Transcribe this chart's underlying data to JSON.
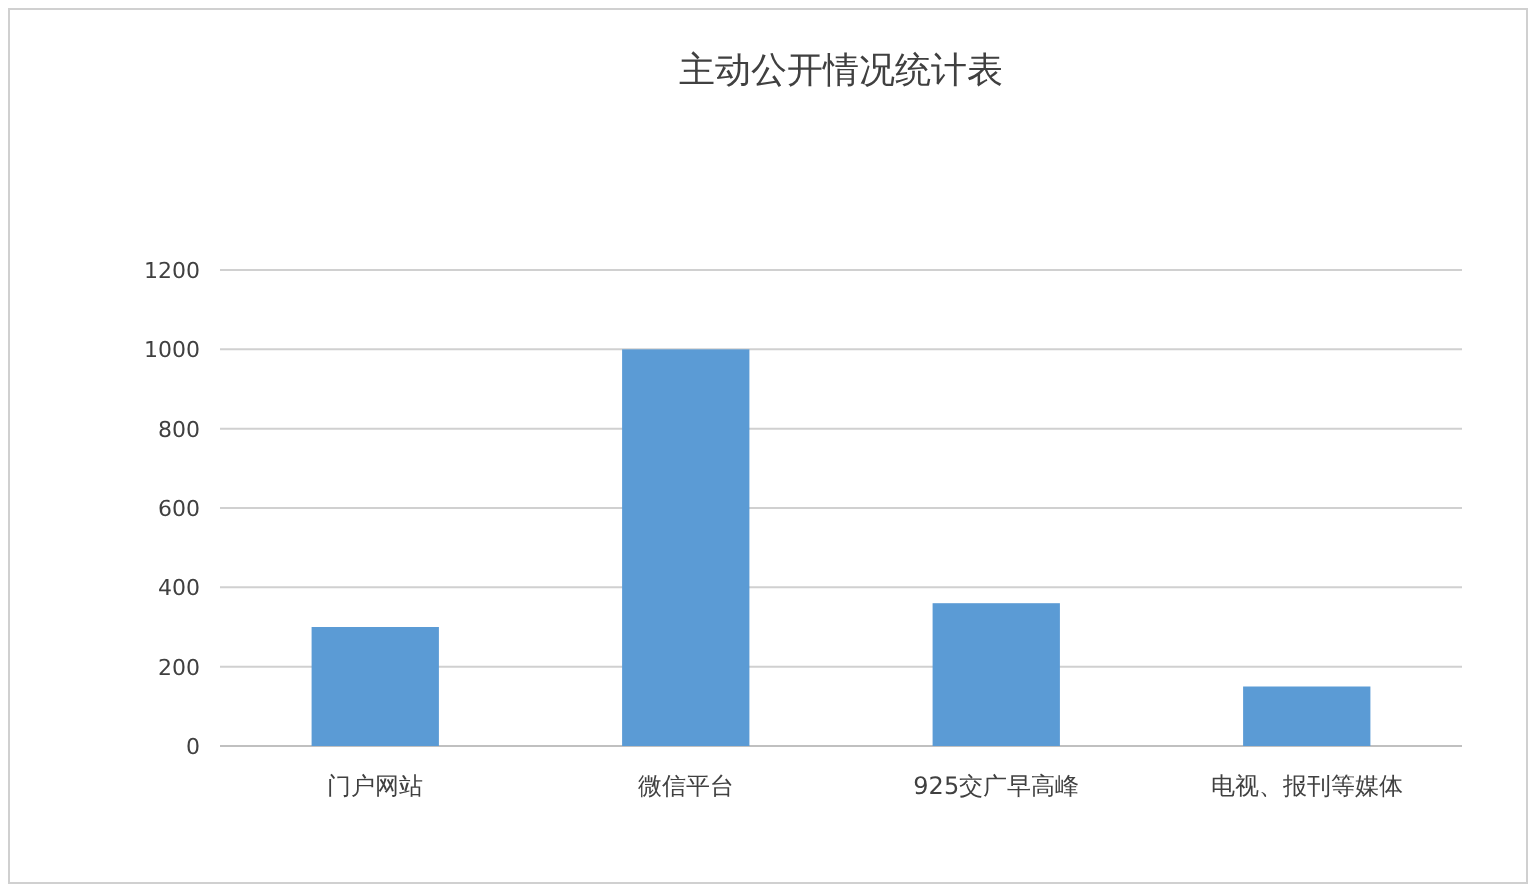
{
  "chart_data": {
    "type": "bar",
    "title": "主动公开情况统计表",
    "categories": [
      "门户网站",
      "微信平台",
      "925交广早高峰",
      "电视、报刊等媒体"
    ],
    "values": [
      300,
      1000,
      360,
      150
    ],
    "color": "#5b9bd5",
    "ylim": [
      0,
      1200
    ],
    "yticks": [
      0,
      200,
      400,
      600,
      800,
      1000,
      1200
    ],
    "grid": "y"
  }
}
